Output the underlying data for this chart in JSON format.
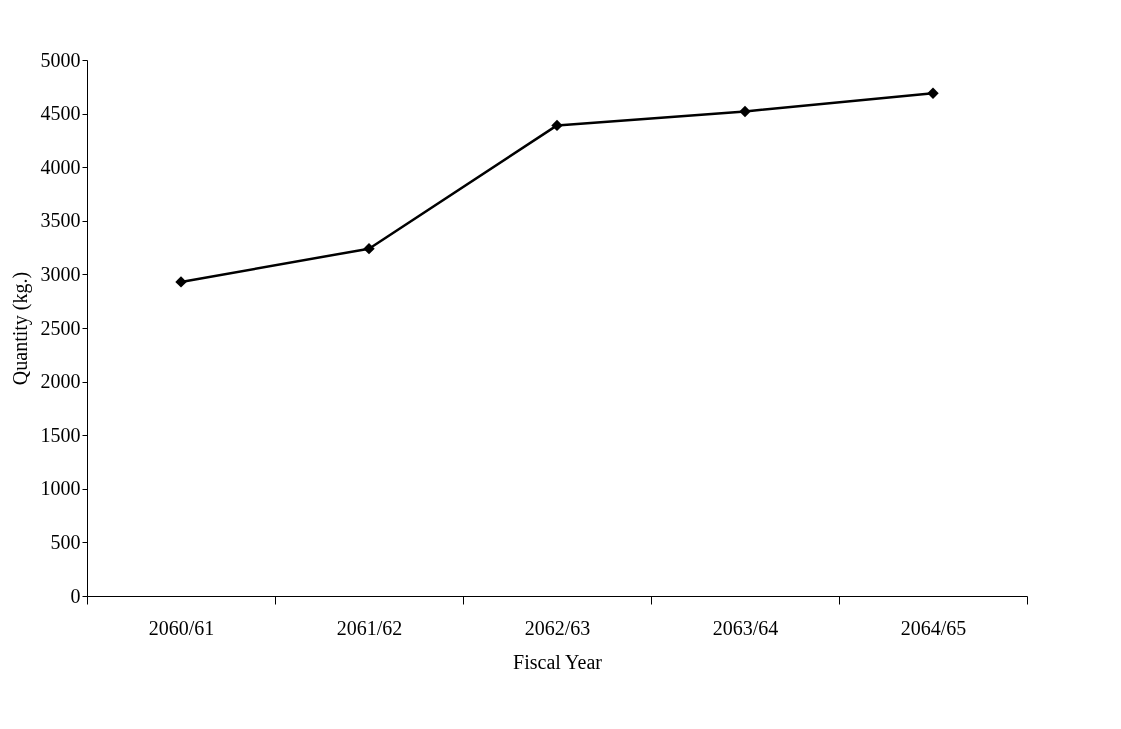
{
  "chart_data": {
    "type": "line",
    "xlabel": "Fiscal Year",
    "ylabel": "Quantity (kg.)",
    "categories": [
      "2060/61",
      "2061/62",
      "2062/63",
      "2063/64",
      "2064/65"
    ],
    "series": [
      {
        "color": "#000000",
        "values": [
          2930,
          3240,
          4390,
          4520,
          4690
        ]
      }
    ],
    "ylim": [
      0,
      5000
    ],
    "yticks": [
      0,
      500,
      1000,
      1500,
      2000,
      2500,
      3000,
      3500,
      4000,
      4500,
      5000
    ],
    "grid": false,
    "legend": false,
    "marker": "diamond",
    "line_style": "solid"
  }
}
